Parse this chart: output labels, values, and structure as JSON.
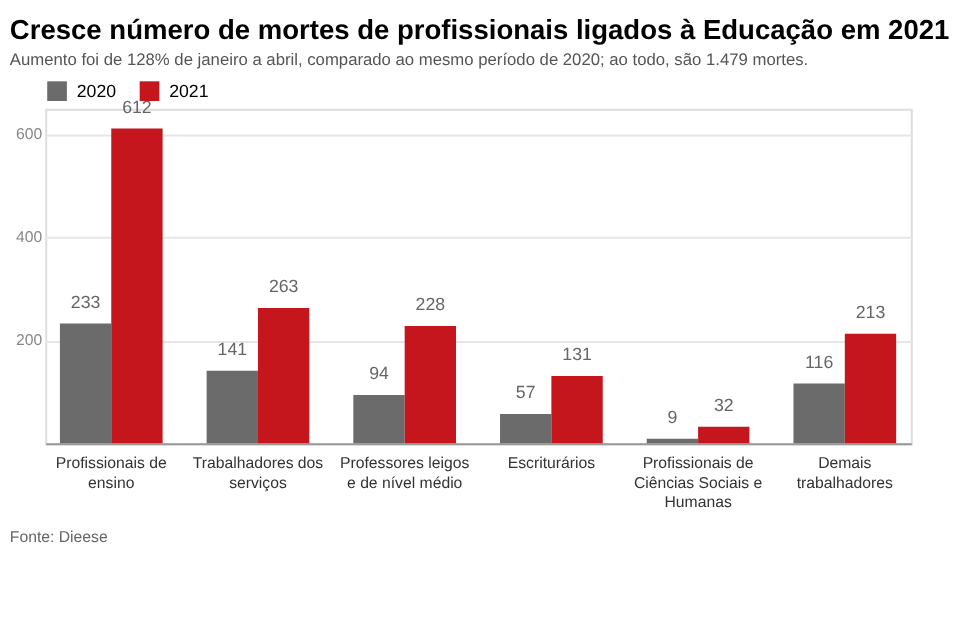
{
  "chart_data": {
    "type": "bar",
    "title": "Cresce número de mortes de profissionais ligados à Educação em 2021",
    "subtitle": "Aumento foi de 128% de janeiro a abril, comparado ao mesmo período de 2020; ao todo, são 1.479 mortes.",
    "categories": [
      "Profissionais de ensino",
      "Trabalhadores dos serviços",
      "Professores leigos e de nível médio",
      "Escriturários",
      "Profissionais de Ciências Sociais e Humanas",
      "Demais trabalhadores"
    ],
    "series": [
      {
        "name": "2020",
        "color": "#6b6b6b",
        "values": [
          233,
          141,
          94,
          57,
          9,
          116
        ]
      },
      {
        "name": "2021",
        "color": "#c4161c",
        "values": [
          612,
          263,
          228,
          131,
          32,
          213
        ]
      }
    ],
    "ylim": [
      0,
      650
    ],
    "yticks": [
      {
        "value": 0,
        "label": null
      },
      200,
      400,
      600
    ],
    "grid": "y",
    "legend": "top left",
    "data_labels": true,
    "annotations": [
      "Fonte: Dieese"
    ]
  }
}
